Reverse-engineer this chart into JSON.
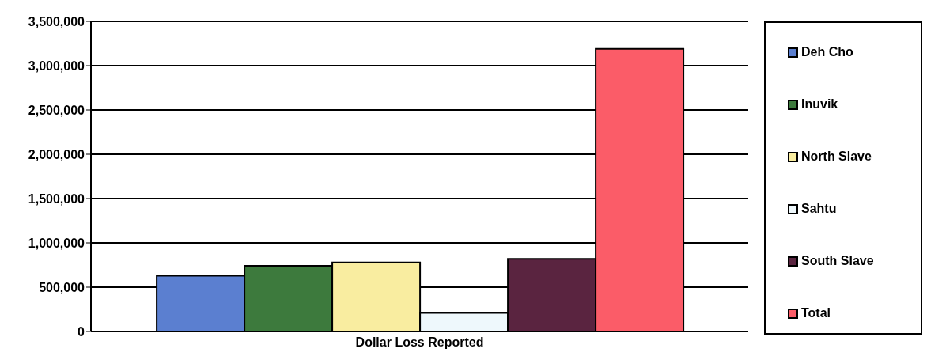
{
  "chart_data": {
    "type": "bar",
    "categories": [
      "Dollar Loss Reported"
    ],
    "series": [
      {
        "name": "Deh Cho",
        "color": "#5b7fd0",
        "values": [
          630000
        ]
      },
      {
        "name": "Inuvik",
        "color": "#3d7a3d",
        "values": [
          740000
        ]
      },
      {
        "name": "North Slave",
        "color": "#f9eda0",
        "values": [
          780000
        ]
      },
      {
        "name": "Sahtu",
        "color": "#eef8fc",
        "values": [
          210000
        ]
      },
      {
        "name": "South Slave",
        "color": "#5a2440",
        "values": [
          820000
        ]
      },
      {
        "name": "Total",
        "color": "#fb5c68",
        "values": [
          3190000
        ]
      }
    ],
    "ylim": [
      0,
      3500000
    ],
    "yticks": [
      0,
      {
        "value": 500000,
        "label": "500,000"
      },
      {
        "value": 1000000,
        "label": "1,000,000"
      },
      {
        "value": 1500000,
        "label": "1,500,000"
      },
      {
        "value": 2000000,
        "label": "2,000,000"
      },
      {
        "value": 2500000,
        "label": "2,500,000"
      },
      {
        "value": 3000000,
        "label": "3,000,000"
      },
      {
        "value": 3500000,
        "label": "3,500,000"
      }
    ],
    "grid": "y",
    "legend": "right"
  }
}
